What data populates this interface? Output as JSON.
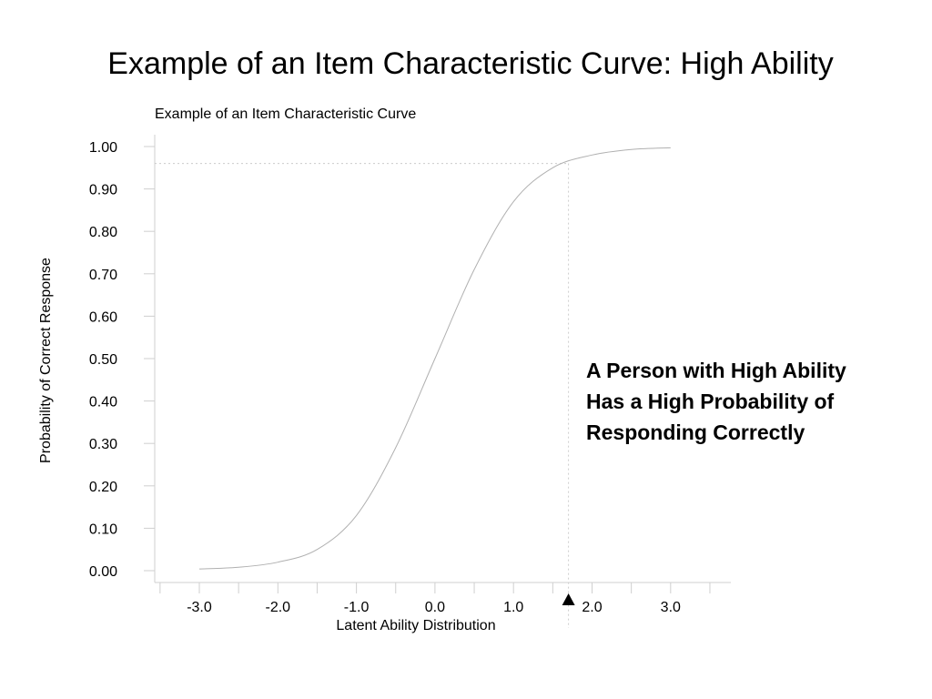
{
  "slide": {
    "title": "Example of an Item Characteristic Curve: High Ability",
    "callout_lines": [
      "A Person with High Ability",
      "Has a High Probability of",
      "Responding Correctly"
    ]
  },
  "chart_data": {
    "type": "line",
    "title": "Example of an Item Characteristic Curve",
    "xlabel": "Latent Ability Distribution",
    "ylabel": "Probability of Correct Response",
    "xlim": [
      -3.5,
      3.5
    ],
    "ylim": [
      0,
      1
    ],
    "x_ticks": [
      -3.0,
      -2.0,
      -1.0,
      0.0,
      1.0,
      2.0,
      3.0
    ],
    "x_tick_labels": [
      "-3.0",
      "-2.0",
      "-1.0",
      "0.0",
      "1.0",
      "2.0",
      "3.0"
    ],
    "y_ticks": [
      0.0,
      0.1,
      0.2,
      0.3,
      0.4,
      0.5,
      0.6,
      0.7,
      0.8,
      0.9,
      1.0
    ],
    "y_tick_labels": [
      "0.00",
      "0.10",
      "0.20",
      "0.30",
      "0.40",
      "0.50",
      "0.60",
      "0.70",
      "0.80",
      "0.90",
      "1.00"
    ],
    "series": [
      {
        "x": [
          -3.0,
          -2.5,
          -2.0,
          -1.5,
          -1.0,
          -0.5,
          0.0,
          0.5,
          1.0,
          1.5,
          2.0,
          2.5,
          3.0
        ],
        "y": [
          0.004,
          0.008,
          0.02,
          0.05,
          0.13,
          0.29,
          0.5,
          0.71,
          0.87,
          0.95,
          0.98,
          0.993,
          0.997
        ]
      }
    ],
    "highlight_point": {
      "x": 1.7,
      "y": 0.96
    },
    "grid": false,
    "line_color": "#b0b0b0",
    "marker_color": "#000000"
  }
}
